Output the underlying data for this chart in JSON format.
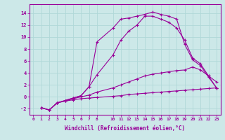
{
  "xlabel": "Windchill (Refroidissement éolien,°C)",
  "background_color": "#cce8e8",
  "grid_color": "#b0d8d8",
  "line_color": "#990099",
  "ylim": [
    -3,
    15.5
  ],
  "xlim": [
    -0.5,
    23.5
  ],
  "yticks": [
    -2,
    0,
    2,
    4,
    6,
    8,
    10,
    12,
    14
  ],
  "xticks": [
    0,
    1,
    2,
    3,
    4,
    5,
    6,
    7,
    8,
    10,
    11,
    12,
    13,
    14,
    15,
    16,
    17,
    18,
    19,
    20,
    21,
    22,
    23
  ],
  "line1_x": [
    1,
    2,
    3,
    4,
    5,
    6,
    7,
    8,
    10,
    11,
    12,
    13,
    14,
    15,
    16,
    17,
    18,
    19,
    20,
    21,
    22,
    23
  ],
  "line1_y": [
    -1.8,
    -2.2,
    -1.0,
    -0.7,
    -0.5,
    -0.3,
    -0.2,
    -0.1,
    0.1,
    0.2,
    0.4,
    0.5,
    0.6,
    0.7,
    0.8,
    0.9,
    1.0,
    1.1,
    1.2,
    1.3,
    1.4,
    1.5
  ],
  "line2_x": [
    1,
    2,
    3,
    4,
    5,
    6,
    7,
    8,
    10,
    11,
    12,
    13,
    14,
    15,
    16,
    17,
    18,
    19,
    20,
    21,
    22,
    23
  ],
  "line2_y": [
    -1.8,
    -2.2,
    -1.0,
    -0.7,
    -0.3,
    0.0,
    0.3,
    0.8,
    1.5,
    2.0,
    2.5,
    3.0,
    3.5,
    3.8,
    4.0,
    4.2,
    4.4,
    4.5,
    5.0,
    4.5,
    3.5,
    2.5
  ],
  "line3_x": [
    1,
    2,
    3,
    4,
    5,
    6,
    7,
    8,
    10,
    11,
    12,
    13,
    14,
    15,
    16,
    17,
    18,
    19,
    20,
    21,
    22,
    23
  ],
  "line3_y": [
    -1.8,
    -2.2,
    -1.0,
    -0.6,
    -0.2,
    0.2,
    1.7,
    3.7,
    7.0,
    9.5,
    11.0,
    12.0,
    13.5,
    13.5,
    13.0,
    12.5,
    11.5,
    9.5,
    6.5,
    5.5,
    3.5,
    1.5
  ],
  "line4_x": [
    1,
    2,
    3,
    4,
    5,
    6,
    7,
    8,
    10,
    11,
    12,
    13,
    14,
    15,
    16,
    17,
    18,
    19,
    20,
    21,
    22,
    23
  ],
  "line4_y": [
    -1.8,
    -2.2,
    -1.0,
    -0.6,
    -0.2,
    0.2,
    1.7,
    9.2,
    11.5,
    13.0,
    13.2,
    13.5,
    13.8,
    14.2,
    13.8,
    13.5,
    13.0,
    8.8,
    6.2,
    5.2,
    3.3,
    1.5
  ]
}
